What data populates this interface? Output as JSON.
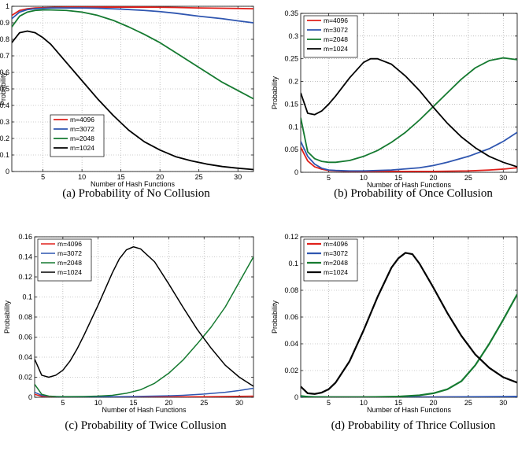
{
  "chart_data": [
    {
      "type": "line",
      "caption": "(a) Probability of No Collusion",
      "xlabel": "Number of Hash Functions",
      "ylabel": "Probability",
      "xlim": [
        1,
        32
      ],
      "ylim": [
        0,
        1
      ],
      "xticks": [
        5,
        10,
        15,
        20,
        25,
        30
      ],
      "yticks": [
        0,
        0.1,
        0.2,
        0.3,
        0.4,
        0.5,
        0.6,
        0.7,
        0.8,
        0.9,
        1
      ],
      "ytick_labels": [
        "0",
        "0.1",
        "0.2",
        "0.3",
        "0.4",
        "0.5",
        "0.6",
        "0.7",
        "0.8",
        "0.9",
        "1"
      ],
      "grid": true,
      "legend_position": "bottom-left",
      "series": [
        {
          "name": "m=4096",
          "color": "#e0201b",
          "x": [
            1,
            2,
            3,
            4,
            6,
            8,
            10,
            12,
            15,
            18,
            20,
            22,
            25,
            28,
            30,
            32
          ],
          "y": [
            0.945,
            0.975,
            0.985,
            0.99,
            0.993,
            0.995,
            0.995,
            0.995,
            0.995,
            0.995,
            0.994,
            0.993,
            0.99,
            0.988,
            0.987,
            0.985
          ]
        },
        {
          "name": "m=3072",
          "color": "#2f56b0",
          "x": [
            1,
            2,
            3,
            4,
            6,
            8,
            10,
            12,
            15,
            18,
            20,
            22,
            25,
            28,
            30,
            32
          ],
          "y": [
            0.925,
            0.965,
            0.98,
            0.985,
            0.99,
            0.99,
            0.99,
            0.988,
            0.983,
            0.975,
            0.968,
            0.958,
            0.94,
            0.925,
            0.912,
            0.9
          ]
        },
        {
          "name": "m=2048",
          "color": "#157a30",
          "x": [
            1,
            2,
            3,
            4,
            5,
            6,
            8,
            10,
            12,
            14,
            16,
            18,
            20,
            22,
            24,
            26,
            28,
            30,
            32
          ],
          "y": [
            0.875,
            0.94,
            0.965,
            0.975,
            0.978,
            0.978,
            0.975,
            0.965,
            0.945,
            0.915,
            0.875,
            0.83,
            0.78,
            0.72,
            0.66,
            0.6,
            0.54,
            0.49,
            0.44
          ]
        },
        {
          "name": "m=1024",
          "color": "#000000",
          "x": [
            1,
            2,
            3,
            4,
            5,
            6,
            8,
            10,
            12,
            14,
            16,
            18,
            20,
            22,
            24,
            26,
            28,
            30,
            32
          ],
          "y": [
            0.78,
            0.84,
            0.85,
            0.84,
            0.81,
            0.77,
            0.66,
            0.55,
            0.44,
            0.34,
            0.25,
            0.18,
            0.13,
            0.09,
            0.065,
            0.045,
            0.03,
            0.02,
            0.012
          ]
        }
      ]
    },
    {
      "type": "line",
      "caption": "(b) Probability of Once Collusion",
      "xlabel": "Number of Hash Functions",
      "ylabel": "Probability",
      "xlim": [
        1,
        32
      ],
      "ylim": [
        0,
        0.35
      ],
      "xticks": [
        5,
        10,
        15,
        20,
        25,
        30
      ],
      "yticks": [
        0,
        0.05,
        0.1,
        0.15,
        0.2,
        0.25,
        0.3,
        0.35
      ],
      "ytick_labels": [
        "0",
        "0.05",
        "0.1",
        "0.15",
        "0.2",
        "0.25",
        "0.3",
        "0.35"
      ],
      "grid": true,
      "legend_position": "top-left",
      "series": [
        {
          "name": "m=4096",
          "color": "#e0201b",
          "x": [
            1,
            2,
            3,
            4,
            5,
            6,
            8,
            10,
            15,
            20,
            25,
            28,
            30,
            32
          ],
          "y": [
            0.055,
            0.025,
            0.012,
            0.007,
            0.004,
            0.003,
            0.002,
            0.002,
            0.002,
            0.002,
            0.003,
            0.005,
            0.007,
            0.01
          ]
        },
        {
          "name": "m=3072",
          "color": "#2f56b0",
          "x": [
            1,
            2,
            3,
            4,
            5,
            6,
            8,
            10,
            14,
            18,
            20,
            22,
            25,
            28,
            30,
            32
          ],
          "y": [
            0.068,
            0.035,
            0.018,
            0.009,
            0.005,
            0.004,
            0.003,
            0.003,
            0.005,
            0.01,
            0.015,
            0.022,
            0.035,
            0.052,
            0.068,
            0.088
          ]
        },
        {
          "name": "m=2048",
          "color": "#157a30",
          "x": [
            1,
            2,
            3,
            4,
            5,
            6,
            8,
            10,
            12,
            14,
            16,
            18,
            20,
            22,
            24,
            26,
            28,
            30,
            32
          ],
          "y": [
            0.12,
            0.045,
            0.03,
            0.024,
            0.022,
            0.022,
            0.026,
            0.035,
            0.048,
            0.066,
            0.088,
            0.115,
            0.145,
            0.175,
            0.205,
            0.23,
            0.246,
            0.252,
            0.248
          ]
        },
        {
          "name": "m=1024",
          "color": "#000000",
          "x": [
            1,
            2,
            3,
            4,
            5,
            6,
            8,
            10,
            11,
            12,
            14,
            16,
            18,
            20,
            22,
            24,
            26,
            28,
            30,
            32
          ],
          "y": [
            0.175,
            0.13,
            0.127,
            0.135,
            0.15,
            0.168,
            0.208,
            0.242,
            0.25,
            0.25,
            0.238,
            0.212,
            0.18,
            0.143,
            0.108,
            0.078,
            0.054,
            0.035,
            0.022,
            0.012
          ]
        }
      ]
    },
    {
      "type": "line",
      "caption": "(c) Probability of Twice Collusion",
      "xlabel": "Number of Hash Functions",
      "ylabel": "Probability",
      "xlim": [
        1,
        32
      ],
      "ylim": [
        0,
        0.16
      ],
      "xticks": [
        5,
        10,
        15,
        20,
        25,
        30
      ],
      "yticks": [
        0,
        0.02,
        0.04,
        0.06,
        0.08,
        0.1,
        0.12,
        0.14,
        0.16
      ],
      "ytick_labels": [
        "0",
        "0.02",
        "0.04",
        "0.06",
        "0.08",
        "0.1",
        "0.12",
        "0.14",
        "0.16"
      ],
      "grid": true,
      "legend_position": "top-left",
      "series": [
        {
          "name": "m=4096",
          "color": "#e0201b",
          "x": [
            1,
            2,
            3,
            5,
            10,
            15,
            20,
            25,
            30,
            32
          ],
          "y": [
            0.003,
            0.001,
            0.0005,
            0.0003,
            0.0003,
            0.0003,
            0.0004,
            0.0006,
            0.001,
            0.0012
          ]
        },
        {
          "name": "m=3072",
          "color": "#2f56b0",
          "x": [
            1,
            2,
            3,
            5,
            10,
            15,
            20,
            22,
            25,
            28,
            30,
            32
          ],
          "y": [
            0.005,
            0.002,
            0.001,
            0.0005,
            0.0005,
            0.0008,
            0.0015,
            0.002,
            0.0032,
            0.005,
            0.0068,
            0.009
          ]
        },
        {
          "name": "m=2048",
          "color": "#157a30",
          "x": [
            1,
            2,
            3,
            4,
            6,
            8,
            10,
            12,
            14,
            16,
            18,
            20,
            22,
            24,
            26,
            28,
            30,
            32
          ],
          "y": [
            0.013,
            0.003,
            0.0012,
            0.0008,
            0.0007,
            0.0008,
            0.0012,
            0.002,
            0.004,
            0.0075,
            0.014,
            0.024,
            0.037,
            0.053,
            0.07,
            0.09,
            0.115,
            0.14
          ]
        },
        {
          "name": "m=1024",
          "color": "#000000",
          "x": [
            1,
            2,
            3,
            4,
            5,
            6,
            7,
            8,
            10,
            12,
            13,
            14,
            15,
            16,
            18,
            20,
            22,
            24,
            26,
            28,
            30,
            32
          ],
          "y": [
            0.038,
            0.022,
            0.02,
            0.022,
            0.027,
            0.036,
            0.048,
            0.062,
            0.092,
            0.124,
            0.138,
            0.147,
            0.15,
            0.148,
            0.135,
            0.113,
            0.09,
            0.068,
            0.049,
            0.032,
            0.02,
            0.011
          ]
        }
      ]
    },
    {
      "type": "line",
      "caption": "(d) Probability of Thrice Collusion",
      "xlabel": "Number of Hash Functions",
      "ylabel": "Probability",
      "xlim": [
        1,
        32
      ],
      "ylim": [
        0,
        0.12
      ],
      "xticks": [
        5,
        10,
        15,
        20,
        25,
        30
      ],
      "yticks": [
        0,
        0.02,
        0.04,
        0.06,
        0.08,
        0.1,
        0.12
      ],
      "ytick_labels": [
        "0",
        "0.02",
        "0.04",
        "0.06",
        "0.08",
        "0.1",
        "0.12"
      ],
      "grid": true,
      "legend_position": "top-left",
      "series": [
        {
          "name": "m=4096",
          "color": "#e0201b",
          "x": [
            1,
            3,
            5,
            10,
            15,
            20,
            25,
            30,
            32
          ],
          "y": [
            0.0003,
            0.0001,
            0.0001,
            0.0001,
            0.0001,
            0.0001,
            0.0001,
            0.0002,
            0.0002
          ]
        },
        {
          "name": "m=3072",
          "color": "#2f56b0",
          "x": [
            1,
            3,
            5,
            10,
            15,
            20,
            25,
            30,
            32
          ],
          "y": [
            0.0005,
            0.0002,
            0.0001,
            0.0001,
            0.0001,
            0.0001,
            0.0002,
            0.0004,
            0.0005
          ]
        },
        {
          "name": "m=2048",
          "color": "#157a30",
          "x": [
            1,
            2,
            3,
            5,
            10,
            15,
            18,
            20,
            22,
            24,
            26,
            28,
            30,
            32
          ],
          "y": [
            0.001,
            0.0004,
            0.0002,
            0.0001,
            0.0001,
            0.0005,
            0.0015,
            0.003,
            0.006,
            0.012,
            0.024,
            0.04,
            0.058,
            0.077
          ]
        },
        {
          "name": "m=1024",
          "color": "#000000",
          "x": [
            1,
            2,
            3,
            4,
            5,
            6,
            8,
            10,
            12,
            14,
            15,
            16,
            17,
            18,
            20,
            22,
            24,
            26,
            28,
            30,
            32
          ],
          "y": [
            0.008,
            0.003,
            0.0025,
            0.0035,
            0.006,
            0.011,
            0.027,
            0.05,
            0.075,
            0.097,
            0.104,
            0.108,
            0.107,
            0.1,
            0.082,
            0.063,
            0.046,
            0.032,
            0.022,
            0.015,
            0.011
          ]
        }
      ]
    }
  ]
}
